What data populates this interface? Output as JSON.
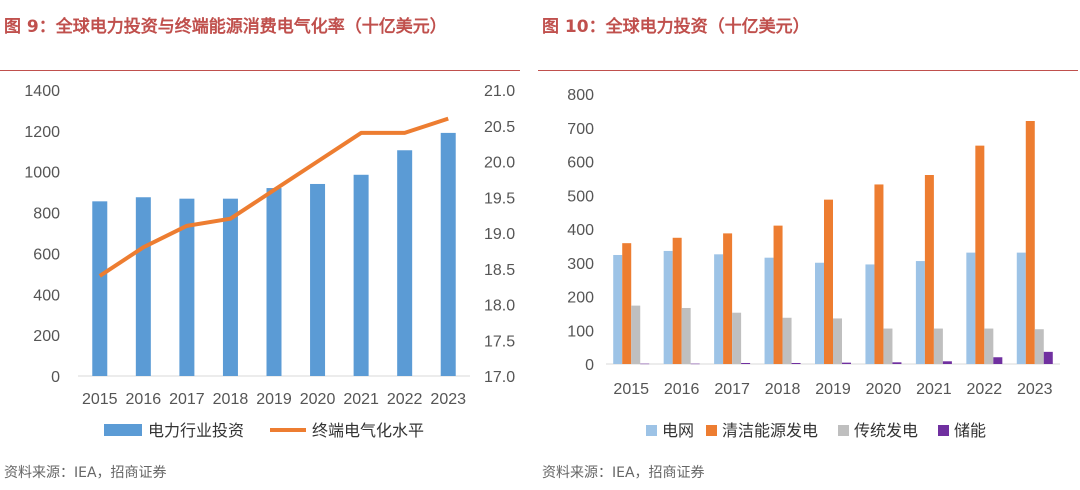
{
  "left_panel": {
    "title": "图 9：全球电力投资与终端能源消费电气化率（十亿美元）",
    "source": "资料来源：IEA，招商证券"
  },
  "right_panel": {
    "title": "图 10：全球电力投资（十亿美元）",
    "source": "资料来源：IEA，招商证券"
  },
  "colors": {
    "title_red": "#c0504d",
    "bar_blue": "#5b9bd5",
    "line_orange": "#ed7d31",
    "light_blue": "#9dc3e6",
    "gray": "#bfbfbf",
    "purple": "#7030a0"
  },
  "chart_data": [
    {
      "type": "bar",
      "categories": [
        "2015",
        "2016",
        "2017",
        "2018",
        "2019",
        "2020",
        "2021",
        "2022",
        "2023"
      ],
      "series": [
        {
          "name": "电力行业投资",
          "axis": "left",
          "kind": "bar",
          "values": [
            855,
            875,
            868,
            868,
            920,
            940,
            985,
            1105,
            1190
          ]
        },
        {
          "name": "终端电气化水平",
          "axis": "right",
          "kind": "line",
          "values": [
            18.4,
            18.8,
            19.1,
            19.2,
            19.6,
            20.0,
            20.4,
            20.4,
            20.6
          ]
        }
      ],
      "yticks_left": [
        "0",
        "200",
        "400",
        "600",
        "800",
        "1000",
        "1200",
        "1400"
      ],
      "ylim_left": [
        0,
        1400
      ],
      "yticks_right": [
        "17.0",
        "17.5",
        "18.0",
        "18.5",
        "19.0",
        "19.5",
        "20.0",
        "20.5",
        "21.0"
      ],
      "ylim_right": [
        17.0,
        21.0
      ],
      "legend": [
        "电力行业投资",
        "终端电气化水平"
      ]
    },
    {
      "type": "bar",
      "categories": [
        "2015",
        "2016",
        "2017",
        "2018",
        "2019",
        "2020",
        "2021",
        "2022",
        "2023"
      ],
      "series": [
        {
          "name": "电网",
          "values": [
            323,
            335,
            325,
            315,
            300,
            295,
            305,
            330,
            330
          ]
        },
        {
          "name": "清洁能源发电",
          "values": [
            358,
            374,
            387,
            410,
            487,
            532,
            560,
            647,
            720
          ]
        },
        {
          "name": "传统发电",
          "values": [
            173,
            166,
            152,
            137,
            135,
            105,
            105,
            105,
            103
          ]
        },
        {
          "name": "储能",
          "values": [
            1,
            1,
            3,
            3,
            4,
            5,
            8,
            20,
            36
          ]
        }
      ],
      "yticks": [
        "0",
        "100",
        "200",
        "300",
        "400",
        "500",
        "600",
        "700",
        "800"
      ],
      "ylim": [
        0,
        800
      ],
      "legend": [
        "电网",
        "清洁能源发电",
        "传统发电",
        "储能"
      ]
    }
  ]
}
